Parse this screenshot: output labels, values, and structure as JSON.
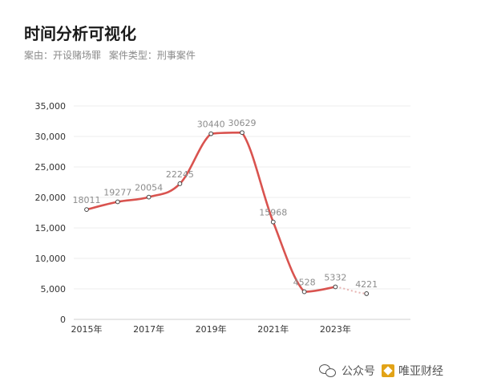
{
  "header": {
    "title": "时间分析可视化",
    "filter_reason": "案由：开设赌场罪",
    "filter_type": "案件类型：刑事案件"
  },
  "watermark": {
    "text1": "公众号",
    "text2": "唯亚财经"
  },
  "chart_data": {
    "type": "line",
    "title": "时间分析可视化",
    "xlabel": "",
    "ylabel": "",
    "x_tick_labels": [
      "2015年",
      "2017年",
      "2019年",
      "2021年",
      "2023年"
    ],
    "x": [
      2015,
      2016,
      2017,
      2018,
      2019,
      2020,
      2021,
      2022,
      2023,
      2024
    ],
    "values": [
      18011,
      19277,
      20054,
      22245,
      30440,
      30629,
      15968,
      4528,
      5332,
      4221
    ],
    "ylim": [
      0,
      35000
    ],
    "yticks": [
      0,
      5000,
      10000,
      15000,
      20000,
      25000,
      30000,
      35000
    ],
    "ytick_labels": [
      "0",
      "5,000",
      "10,000",
      "15,000",
      "20,000",
      "25,000",
      "30,000",
      "35,000"
    ],
    "last_segment_dashed": true,
    "grid": true,
    "colors": {
      "line": "#d9534f",
      "dashed": "#e8b4b2",
      "grid": "#ececec",
      "label": "#8c8c8c"
    }
  }
}
